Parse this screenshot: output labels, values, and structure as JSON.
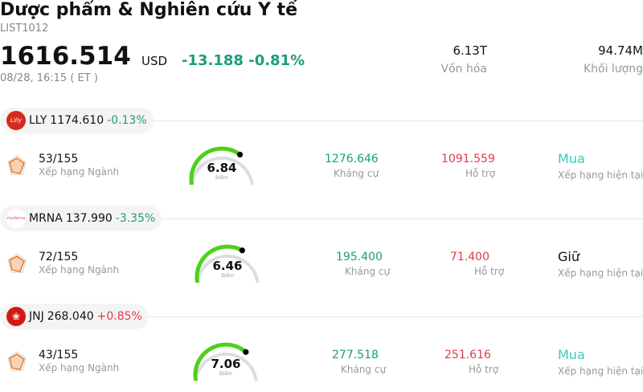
{
  "header": {
    "title": "Dược phẩm & Nghiên cứu Y tế",
    "code": "LIST1012",
    "price": "1616.514",
    "currency": "USD",
    "change": "-13.188",
    "change_pct": "-0.81%",
    "time": "08/28, 16:15 ( ET )",
    "market_cap_value": "6.13T",
    "market_cap_label": "Vốn hóa",
    "volume_value": "94.74M",
    "volume_label": "Khối lượng"
  },
  "colors": {
    "negative": "#1a9e7a",
    "positive": "#e03a4a",
    "gauge": "#4cd11a",
    "buy": "#3ec9b8"
  },
  "stocks": [
    {
      "symbol": "LLY",
      "price": "1174.610",
      "change": "-0.13%",
      "logo_icon": "lilly-logo-icon",
      "logo_text": "Lilly",
      "rank": "53/155",
      "rank_label": "Xếp hạng Ngành",
      "score": "6.84",
      "score_value": 6.84,
      "score_label": "Điểm",
      "resistance": "1276.646",
      "resistance_label": "Kháng cự",
      "support": "1091.559",
      "support_label": "Hỗ trợ",
      "rating": "Mua",
      "rating_label": "Xếp hạng hiện tại"
    },
    {
      "symbol": "MRNA",
      "price": "137.990",
      "change": "-3.35%",
      "logo_icon": "moderna-logo-icon",
      "logo_text": "moderna",
      "rank": "72/155",
      "rank_label": "Xếp hạng Ngành",
      "score": "6.46",
      "score_value": 6.46,
      "score_label": "Điểm",
      "resistance": "195.400",
      "resistance_label": "Kháng cự",
      "support": "71.400",
      "support_label": "Hỗ trợ",
      "rating": "Giữ",
      "rating_label": "Xếp hạng hiện tại"
    },
    {
      "symbol": "JNJ",
      "price": "268.040",
      "change": "+0.85%",
      "logo_icon": "jnj-logo-icon",
      "logo_text": "",
      "rank": "43/155",
      "rank_label": "Xếp hạng Ngành",
      "score": "7.06",
      "score_value": 7.06,
      "score_label": "Điểm",
      "resistance": "277.518",
      "resistance_label": "Kháng cự",
      "support": "251.616",
      "support_label": "Hỗ trợ",
      "rating": "Mua",
      "rating_label": "Xếp hạng hiện tại"
    }
  ]
}
